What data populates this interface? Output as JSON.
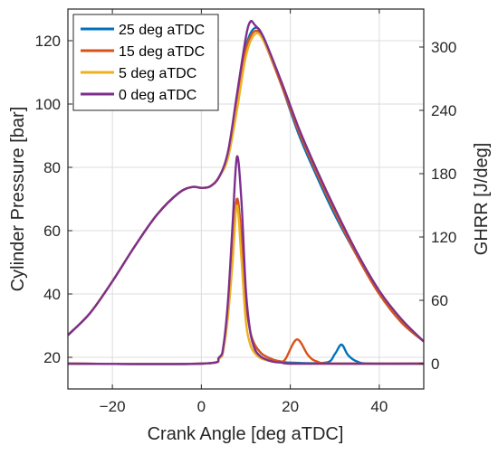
{
  "chart_data": {
    "type": "line",
    "xlabel": "Crank Angle [deg aTDC]",
    "ylabel_left": "Cylinder Pressure [bar]",
    "ylabel_right": "GHRR [J/deg]",
    "xlim": [
      -30,
      50
    ],
    "ylim_left": [
      10,
      130
    ],
    "ylim_right": [
      -24,
      336
    ],
    "x_ticks": [
      -20,
      0,
      20,
      40
    ],
    "y_ticks_left": [
      20,
      40,
      60,
      80,
      100,
      120
    ],
    "y_ticks_right": [
      0,
      60,
      120,
      180,
      240,
      300
    ],
    "grid": true,
    "legend_position": "top-left",
    "colors": {
      "25 deg aTDC": "#0072BD",
      "15 deg aTDC": "#D95319",
      "5 deg aTDC": "#EDB120",
      "0 deg aTDC": "#7E2F8E"
    },
    "legend": [
      "25 deg aTDC",
      "15 deg aTDC",
      "5 deg aTDC",
      "0 deg aTDC"
    ],
    "pressure_series": [
      {
        "name": "25 deg aTDC",
        "axis": "left",
        "x": [
          -30,
          -25,
          -20,
          -15,
          -10,
          -5,
          -2,
          0,
          2,
          4,
          6,
          8,
          10,
          12,
          14,
          18,
          22,
          26,
          30,
          35,
          40,
          45,
          50
        ],
        "y": [
          27,
          34,
          44,
          55,
          65,
          72,
          73.8,
          73.5,
          74,
          77,
          84,
          101,
          118,
          124,
          121,
          106,
          90,
          77,
          65,
          52,
          40,
          31,
          25
        ]
      },
      {
        "name": "15 deg aTDC",
        "axis": "left",
        "x": [
          -30,
          -25,
          -20,
          -15,
          -10,
          -5,
          -2,
          0,
          2,
          4,
          6,
          8,
          10,
          12,
          14,
          18,
          22,
          26,
          30,
          35,
          40,
          45,
          50
        ],
        "y": [
          27,
          34,
          44,
          55,
          65,
          72,
          73.8,
          73.5,
          74,
          77,
          84,
          100,
          117,
          123,
          120,
          106,
          91,
          78,
          66,
          52,
          40,
          31,
          25
        ]
      },
      {
        "name": "5 deg aTDC",
        "axis": "left",
        "x": [
          -30,
          -25,
          -20,
          -15,
          -10,
          -5,
          -2,
          0,
          2,
          4,
          6,
          8,
          10,
          12,
          14,
          18,
          22,
          26,
          30,
          35,
          40,
          45,
          50
        ],
        "y": [
          27,
          34,
          44,
          55,
          65,
          72,
          73.8,
          73.5,
          74,
          77,
          83,
          98,
          115,
          122,
          120,
          107,
          92,
          79,
          67,
          53,
          41,
          32,
          25
        ]
      },
      {
        "name": "0 deg aTDC",
        "axis": "left",
        "x": [
          -30,
          -25,
          -20,
          -15,
          -10,
          -5,
          -2,
          0,
          2,
          4,
          6,
          8,
          10,
          11,
          12,
          14,
          18,
          22,
          26,
          30,
          35,
          40,
          45,
          50
        ],
        "y": [
          27,
          34,
          44,
          55,
          65,
          72,
          73.8,
          73.5,
          74,
          77,
          85,
          103,
          121,
          126,
          125,
          121,
          107,
          92,
          79,
          67,
          53,
          41,
          32,
          25
        ]
      }
    ],
    "ghrr_series": [
      {
        "name": "25 deg aTDC",
        "axis": "right",
        "x": [
          -30,
          0,
          4,
          5,
          6,
          7,
          8,
          9,
          10,
          11,
          12,
          13,
          14,
          16,
          18,
          20,
          28,
          30,
          31.5,
          33,
          35,
          38,
          50
        ],
        "y": [
          0,
          0,
          5,
          15,
          50,
          105,
          156,
          120,
          60,
          30,
          18,
          12,
          8,
          4,
          2,
          1,
          1,
          9,
          18,
          8,
          2,
          0,
          0
        ]
      },
      {
        "name": "15 deg aTDC",
        "axis": "right",
        "x": [
          -30,
          0,
          4,
          5,
          6,
          7,
          8,
          9,
          10,
          11,
          12,
          13,
          14,
          16,
          18,
          19,
          21.5,
          24,
          26,
          30,
          50
        ],
        "y": [
          0,
          0,
          5,
          15,
          50,
          105,
          156,
          120,
          60,
          30,
          18,
          12,
          8,
          4,
          2,
          5,
          23,
          8,
          2,
          0,
          0
        ]
      },
      {
        "name": "5 deg aTDC",
        "axis": "right",
        "x": [
          -30,
          0,
          4,
          5,
          6,
          7,
          8,
          9,
          10,
          11,
          12,
          13,
          14,
          16,
          18,
          20,
          30,
          50
        ],
        "y": [
          0,
          0,
          5,
          15,
          45,
          95,
          150,
          100,
          40,
          18,
          10,
          6,
          4,
          2,
          1,
          0,
          0,
          0
        ]
      },
      {
        "name": "0 deg aTDC",
        "axis": "right",
        "x": [
          -30,
          0,
          4,
          5,
          6,
          7,
          8,
          9,
          10,
          11,
          12,
          13,
          14,
          16,
          18,
          20,
          30,
          50
        ],
        "y": [
          0,
          0,
          6,
          18,
          60,
          130,
          196,
          155,
          70,
          30,
          14,
          8,
          5,
          2,
          1,
          0,
          0,
          0
        ]
      }
    ]
  }
}
